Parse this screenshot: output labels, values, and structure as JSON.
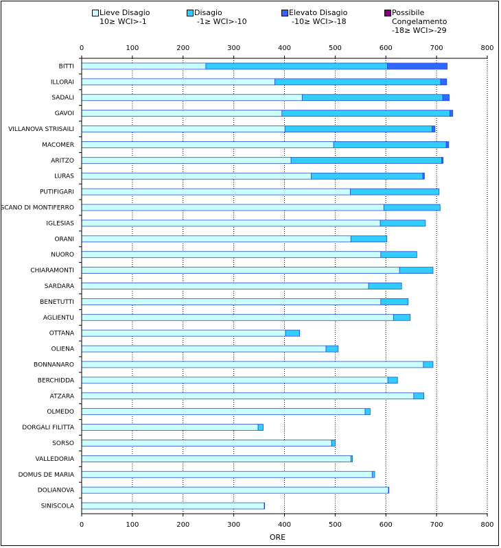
{
  "chart_data": {
    "type": "bar",
    "stacked": true,
    "orientation": "horizontal",
    "title": "",
    "xlabel": "ORE",
    "ylabel": "",
    "xlim": [
      0,
      800
    ],
    "xticks": [
      "0",
      "100",
      "200",
      "300",
      "400",
      "500",
      "600",
      "700",
      "800"
    ],
    "grid": "vertical dotted",
    "legend_position": "top",
    "categories": [
      "BITTI",
      "ILLORAI",
      "SADALI",
      "GAVOI",
      "VILLANOVA  STRISAILI",
      "MACOMER",
      "ARITZO",
      "LURAS",
      "PUTIFIGARI",
      "SCANO DI MONTIFERRO",
      "IGLESIAS",
      "ORANI",
      "NUORO",
      "CHIARAMONTI",
      "SARDARA",
      "BENETUTTI",
      "AGLIENTU",
      "OTTANA",
      "OLIENA",
      "BONNANARO",
      "BERCHIDDA",
      "ATZARA",
      "OLMEDO",
      "DORGALI FILITTA",
      "SORSO",
      "VALLEDORIA",
      "DOMUS DE MARIA",
      "DOLIANOVA",
      "SINISCOLA"
    ],
    "series": [
      {
        "name": "Lieve Disagio",
        "subtitle": "10≥ WCI>-1",
        "color": "#ccffff",
        "values": [
          245,
          381,
          435,
          395,
          401,
          497,
          413,
          453,
          530,
          596,
          589,
          531,
          590,
          627,
          566,
          590,
          615,
          402,
          482,
          674,
          604,
          655,
          559,
          348,
          493,
          531,
          573,
          605,
          360
        ]
      },
      {
        "name": "Disagio",
        "subtitle": "-1≥ WCI>-10",
        "color": "#33ccff",
        "values": [
          358,
          327,
          277,
          331,
          290,
          222,
          297,
          220,
          175,
          111,
          89,
          71,
          71,
          66,
          65,
          54,
          33,
          28,
          24,
          19,
          19,
          20,
          10,
          10,
          7,
          3,
          5,
          1,
          1
        ]
      },
      {
        "name": "Elevato Disagio",
        "subtitle": "-10≥ WCI>-18",
        "color": "#3366ff",
        "values": [
          118,
          12,
          13,
          6,
          6,
          5,
          3,
          3,
          0,
          0,
          0,
          0,
          0,
          0,
          0,
          0,
          0,
          0,
          0,
          0,
          0,
          0,
          0,
          0,
          0,
          0,
          0,
          0,
          0
        ]
      },
      {
        "name": "Possibile Congelamento",
        "subtitle": "-18≥ WCI>-29",
        "color": "#800080",
        "values": [
          0,
          0,
          0,
          0,
          0,
          0,
          0,
          0,
          0,
          0,
          0,
          0,
          0,
          0,
          0,
          0,
          0,
          0,
          0,
          0,
          0,
          0,
          0,
          0,
          0,
          0,
          0,
          0,
          0
        ]
      }
    ]
  }
}
